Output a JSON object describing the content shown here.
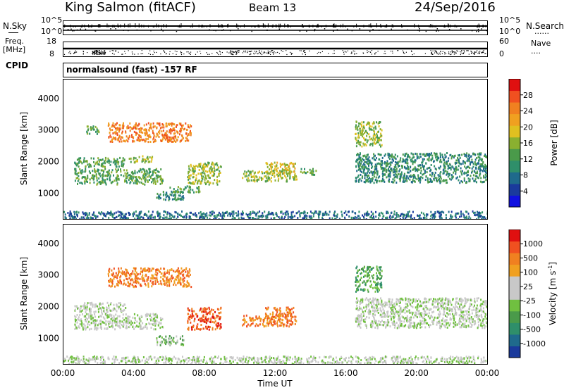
{
  "header": {
    "title": "King Salmon (fitACF)",
    "beam": "Beam 13",
    "date": "24/Sep/2016"
  },
  "summary_panels": {
    "nsky_label": "N.Sky",
    "nsearch_label": "N.Search",
    "nsky_top_tick": "10^5",
    "nsky_bottom_tick": "10^0",
    "nsearch_top_tick": "10^5",
    "nsearch_bottom_tick": "10^0",
    "freq_label_1": "Freq.",
    "freq_label_2": "[MHz]",
    "freq_top_tick": "18",
    "freq_bottom_tick": "8",
    "nave_label": "Nave",
    "nave_top_tick": "60",
    "nave_bottom_tick": "0",
    "cpid_label": "CPID",
    "cpid_text": "normalsound (fast) -157 RF"
  },
  "chart_data": [
    {
      "type": "heatmap",
      "name": "power",
      "ylabel": "Slant Range [km]",
      "ylim": [
        180,
        4600
      ],
      "yticks": [
        "1000",
        "2000",
        "3000",
        "4000"
      ],
      "xlim_hours": [
        0,
        24
      ],
      "colorbar": {
        "label": "Power [dB]",
        "ticks": [
          "4",
          "8",
          "12",
          "16",
          "20",
          "24",
          "28"
        ],
        "colors": [
          "#1010e0",
          "#1a3a9c",
          "#1f6a8c",
          "#2f8f6a",
          "#4a9a4a",
          "#8ab030",
          "#e0c020",
          "#f0a020",
          "#f08020",
          "#f05020",
          "#e01010"
        ]
      },
      "regions": [
        {
          "t0": 0.6,
          "t1": 5.6,
          "r0": 1300,
          "r1": 1800,
          "level": 4
        },
        {
          "t0": 0.6,
          "t1": 3.5,
          "r0": 1850,
          "r1": 2150,
          "level": 4
        },
        {
          "t0": 1.2,
          "t1": 2.0,
          "r0": 2900,
          "r1": 3150,
          "level": 4
        },
        {
          "t0": 2.5,
          "t1": 7.2,
          "r0": 2650,
          "r1": 3250,
          "level": 8
        },
        {
          "t0": 3.6,
          "t1": 5.0,
          "r0": 2000,
          "r1": 2200,
          "level": 5
        },
        {
          "t0": 5.2,
          "t1": 6.8,
          "r0": 800,
          "r1": 1100,
          "level": 3
        },
        {
          "t0": 6.0,
          "t1": 7.7,
          "r0": 1050,
          "r1": 1250,
          "level": 4
        },
        {
          "t0": 7.0,
          "t1": 8.9,
          "r0": 1300,
          "r1": 2000,
          "level": 5
        },
        {
          "t0": 10.1,
          "t1": 13.2,
          "r0": 1400,
          "r1": 1750,
          "level": 5
        },
        {
          "t0": 11.4,
          "t1": 13.1,
          "r0": 1650,
          "r1": 2000,
          "level": 6
        },
        {
          "t0": 13.4,
          "t1": 14.3,
          "r0": 1600,
          "r1": 1800,
          "level": 4
        },
        {
          "t0": 16.5,
          "t1": 18.0,
          "r0": 2500,
          "r1": 3300,
          "level": 5
        },
        {
          "t0": 16.5,
          "t1": 24.0,
          "r0": 1350,
          "r1": 2300,
          "level": 3
        },
        {
          "t0": 0.0,
          "t1": 24.0,
          "r0": 200,
          "r1": 450,
          "level": 2
        }
      ]
    },
    {
      "type": "heatmap",
      "name": "velocity",
      "ylabel": "Slant Range [km]",
      "ylim": [
        180,
        4600
      ],
      "yticks": [
        "1000",
        "2000",
        "3000",
        "4000"
      ],
      "xticks": [
        "00:00",
        "04:00",
        "08:00",
        "12:00",
        "16:00",
        "20:00",
        "00:00"
      ],
      "xlabel": "Time UT",
      "colorbar": {
        "label": "Velocity [m s",
        "label_sup": "-1",
        "label_end": "]",
        "ticks": [
          "1000",
          "500",
          "100",
          "25",
          "-25",
          "-100",
          "-500",
          "-1000"
        ],
        "colors": [
          "#1a3a9c",
          "#1f6a8c",
          "#2f8f6a",
          "#4a9a4a",
          "#70c040",
          "#c8c8c8",
          "#c8c8c8",
          "#f0a020",
          "#f08020",
          "#f05020",
          "#e01010"
        ]
      },
      "regions": [
        {
          "t0": 0.6,
          "t1": 5.6,
          "r0": 1300,
          "r1": 1800,
          "level": 5
        },
        {
          "t0": 0.6,
          "t1": 3.5,
          "r0": 1850,
          "r1": 2150,
          "level": 5
        },
        {
          "t0": 2.5,
          "t1": 7.2,
          "r0": 2650,
          "r1": 3250,
          "level": 8
        },
        {
          "t0": 5.2,
          "t1": 6.8,
          "r0": 800,
          "r1": 1100,
          "level": 4
        },
        {
          "t0": 7.0,
          "t1": 8.9,
          "r0": 1300,
          "r1": 2000,
          "level": 9
        },
        {
          "t0": 10.1,
          "t1": 13.2,
          "r0": 1400,
          "r1": 1750,
          "level": 8
        },
        {
          "t0": 11.4,
          "t1": 13.1,
          "r0": 1650,
          "r1": 2000,
          "level": 8
        },
        {
          "t0": 16.5,
          "t1": 18.0,
          "r0": 2500,
          "r1": 3300,
          "level": 3
        },
        {
          "t0": 16.5,
          "t1": 24.0,
          "r0": 1350,
          "r1": 2300,
          "level": 5
        },
        {
          "t0": 0.0,
          "t1": 24.0,
          "r0": 200,
          "r1": 450,
          "level": 5
        }
      ]
    }
  ]
}
